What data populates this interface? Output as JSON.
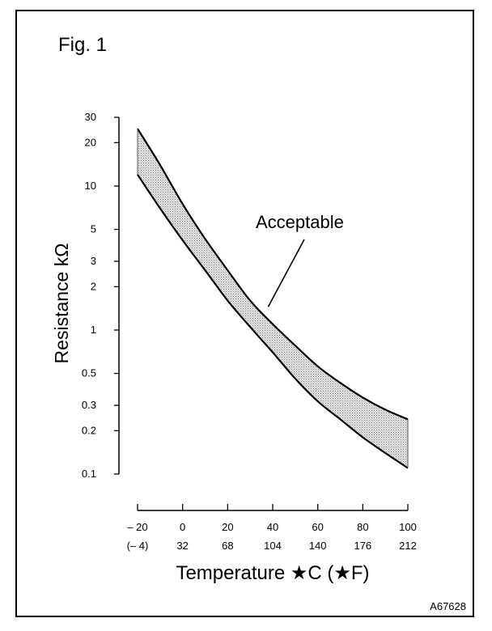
{
  "figure": {
    "label": "Fig. 1",
    "code": "A67628"
  },
  "chart_data": {
    "type": "area",
    "xlabel": "Temperature ★C (★F)",
    "ylabel": "Resistance kΩ",
    "y_scale": "log",
    "ylim": [
      0.1,
      30
    ],
    "xlim": [
      -20,
      100
    ],
    "y_ticks": [
      {
        "value": 30,
        "label": "30"
      },
      {
        "value": 20,
        "label": "20"
      },
      {
        "value": 10,
        "label": "10"
      },
      {
        "value": 5,
        "label": "5"
      },
      {
        "value": 3,
        "label": "3"
      },
      {
        "value": 2,
        "label": "2"
      },
      {
        "value": 1,
        "label": "1"
      },
      {
        "value": 0.5,
        "label": "0.5"
      },
      {
        "value": 0.3,
        "label": "0.3"
      },
      {
        "value": 0.2,
        "label": "0.2"
      },
      {
        "value": 0.1,
        "label": "0.1"
      }
    ],
    "x_ticks": [
      {
        "value": -20,
        "label_c": "– 20",
        "label_f": "(– 4)"
      },
      {
        "value": 0,
        "label_c": "0",
        "label_f": "32"
      },
      {
        "value": 20,
        "label_c": "20",
        "label_f": "68"
      },
      {
        "value": 40,
        "label_c": "40",
        "label_f": "104"
      },
      {
        "value": 60,
        "label_c": "60",
        "label_f": "140"
      },
      {
        "value": 80,
        "label_c": "80",
        "label_f": "176"
      },
      {
        "value": 100,
        "label_c": "100",
        "label_f": "212"
      }
    ],
    "series": [
      {
        "role": "upper-limit",
        "x": [
          -20,
          -10,
          0,
          10,
          20,
          30,
          40,
          50,
          60,
          70,
          80,
          90,
          100
        ],
        "y": [
          25,
          14,
          7.5,
          4.3,
          2.6,
          1.6,
          1.1,
          0.78,
          0.56,
          0.43,
          0.34,
          0.28,
          0.24
        ]
      },
      {
        "role": "lower-limit",
        "x": [
          -20,
          -10,
          0,
          10,
          20,
          30,
          40,
          50,
          60,
          70,
          80,
          90,
          100
        ],
        "y": [
          12,
          7,
          4.2,
          2.6,
          1.6,
          1.05,
          0.7,
          0.46,
          0.32,
          0.24,
          0.18,
          0.14,
          0.11
        ]
      }
    ],
    "band_fill": "#c8c8c8",
    "annotations": [
      {
        "text": "Acceptable",
        "points_to": {
          "x": 38,
          "y": 1.45
        }
      }
    ]
  }
}
